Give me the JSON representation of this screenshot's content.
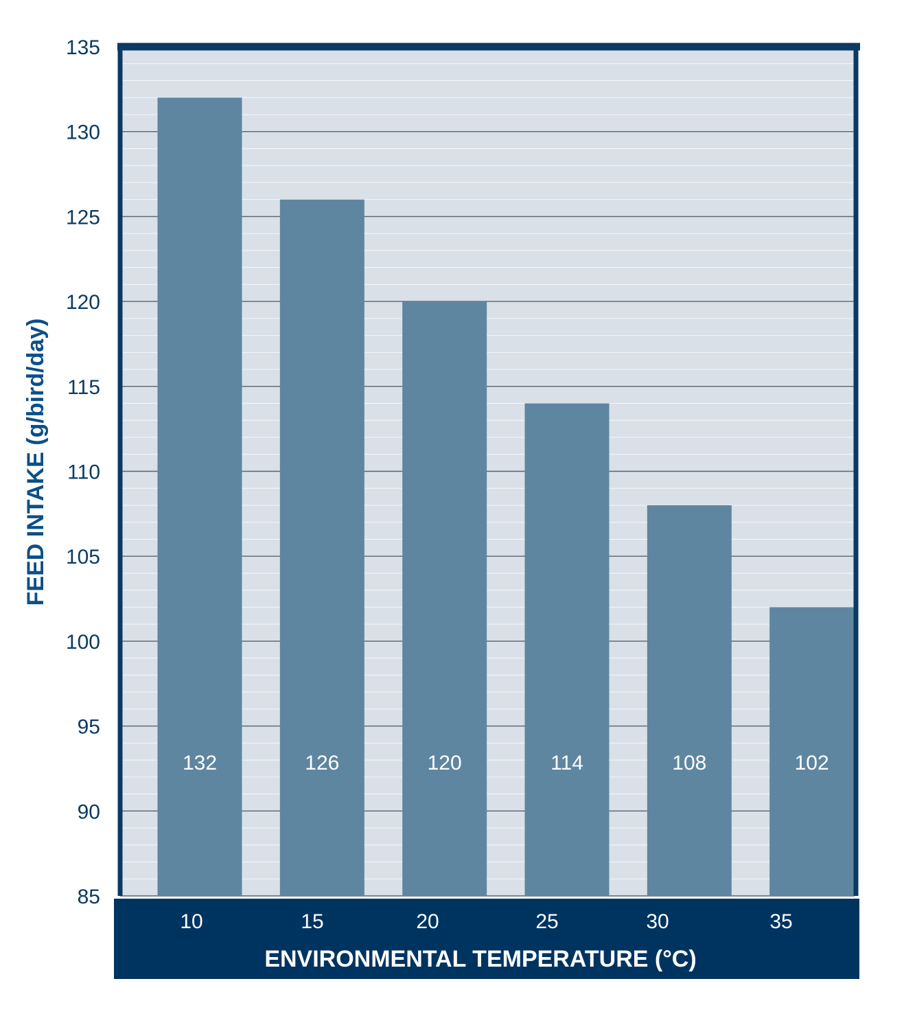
{
  "chart_data": {
    "type": "bar",
    "categories": [
      "10",
      "15",
      "20",
      "25",
      "30",
      "35"
    ],
    "values": [
      132,
      126,
      120,
      114,
      108,
      102
    ],
    "data_labels": [
      "132",
      "126",
      "120",
      "114",
      "108",
      "102"
    ],
    "xlabel": "ENVIRONMENTAL TEMPERATURE (°C)",
    "ylabel": "FEED INTAKE (g/bird/day)",
    "ylim": [
      85,
      135
    ],
    "yticks": [
      "135",
      "130",
      "125",
      "120",
      "115",
      "110",
      "105",
      "100",
      "95",
      "90",
      "85"
    ],
    "grid": true
  },
  "colors": {
    "bar": "#5e86a0",
    "plot_background": "#d9e0e8",
    "frame": "#0b3a63",
    "axis_band": "#003460",
    "ylabel_color": "#0b4f87"
  }
}
